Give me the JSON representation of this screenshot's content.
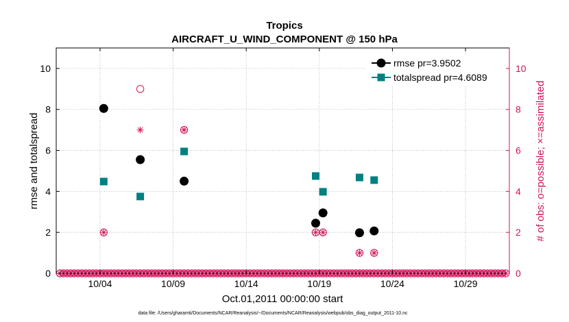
{
  "chart_data": {
    "type": "scatter",
    "title": "Tropics",
    "subtitle": "AIRCRAFT_U_WIND_COMPONENT @ 150 hPa",
    "xlabel": "Oct.01,2011 00:00:00 start",
    "ylabel": "rmse and totalspread",
    "y2label": "# of obs: o=possible; ×=assimilated",
    "footnote": "data file: /Users/gharamti/Documents/NCAR/Reanalysis/~/Documents/NCAR/Reanalysis/webpub/obs_diag_output_2011-10.nc",
    "xlim": [
      1,
      32
    ],
    "ylim": [
      0,
      11
    ],
    "y2lim": [
      0,
      11
    ],
    "x_ticks": [
      4,
      9,
      14,
      19,
      24,
      29
    ],
    "x_tick_labels": [
      "10/04",
      "10/09",
      "10/14",
      "10/19",
      "10/24",
      "10/29"
    ],
    "y_ticks": [
      0,
      2,
      4,
      6,
      8,
      10
    ],
    "y_tick_labels": [
      "0",
      "2",
      "4",
      "6",
      "8",
      "10"
    ],
    "grid": true,
    "legend_position": "top-right",
    "colors": {
      "rmse": "#000000",
      "totalspread": "#008080",
      "obs": "#d1145a"
    },
    "series": [
      {
        "name": "rmse pr=3.9502",
        "marker": "circle-filled",
        "x": [
          4.25,
          6.75,
          9.75,
          18.75,
          19.25,
          21.75,
          22.75
        ],
        "values": [
          8.05,
          5.55,
          4.5,
          2.45,
          2.95,
          1.98,
          2.07
        ]
      },
      {
        "name": "totalspread pr=4.6089",
        "marker": "square-filled",
        "x": [
          4.25,
          6.75,
          9.75,
          18.75,
          19.25,
          21.75,
          22.75
        ],
        "values": [
          4.48,
          3.75,
          5.95,
          4.75,
          3.98,
          4.68,
          4.55
        ]
      }
    ],
    "obs_possible": {
      "x": [
        4.25,
        6.75,
        9.75,
        18.75,
        19.25,
        21.75,
        22.75
      ],
      "values": [
        2,
        9,
        7,
        2,
        2,
        1,
        1
      ]
    },
    "obs_assimilated": {
      "x": [
        4.25,
        6.75,
        9.75,
        18.75,
        19.25,
        21.75,
        22.75
      ],
      "values": [
        2,
        7,
        7,
        2,
        2,
        1,
        1
      ]
    },
    "obs_baseline": {
      "x_start": 1.25,
      "x_end": 31.75,
      "step": 0.25,
      "value": 0
    }
  }
}
